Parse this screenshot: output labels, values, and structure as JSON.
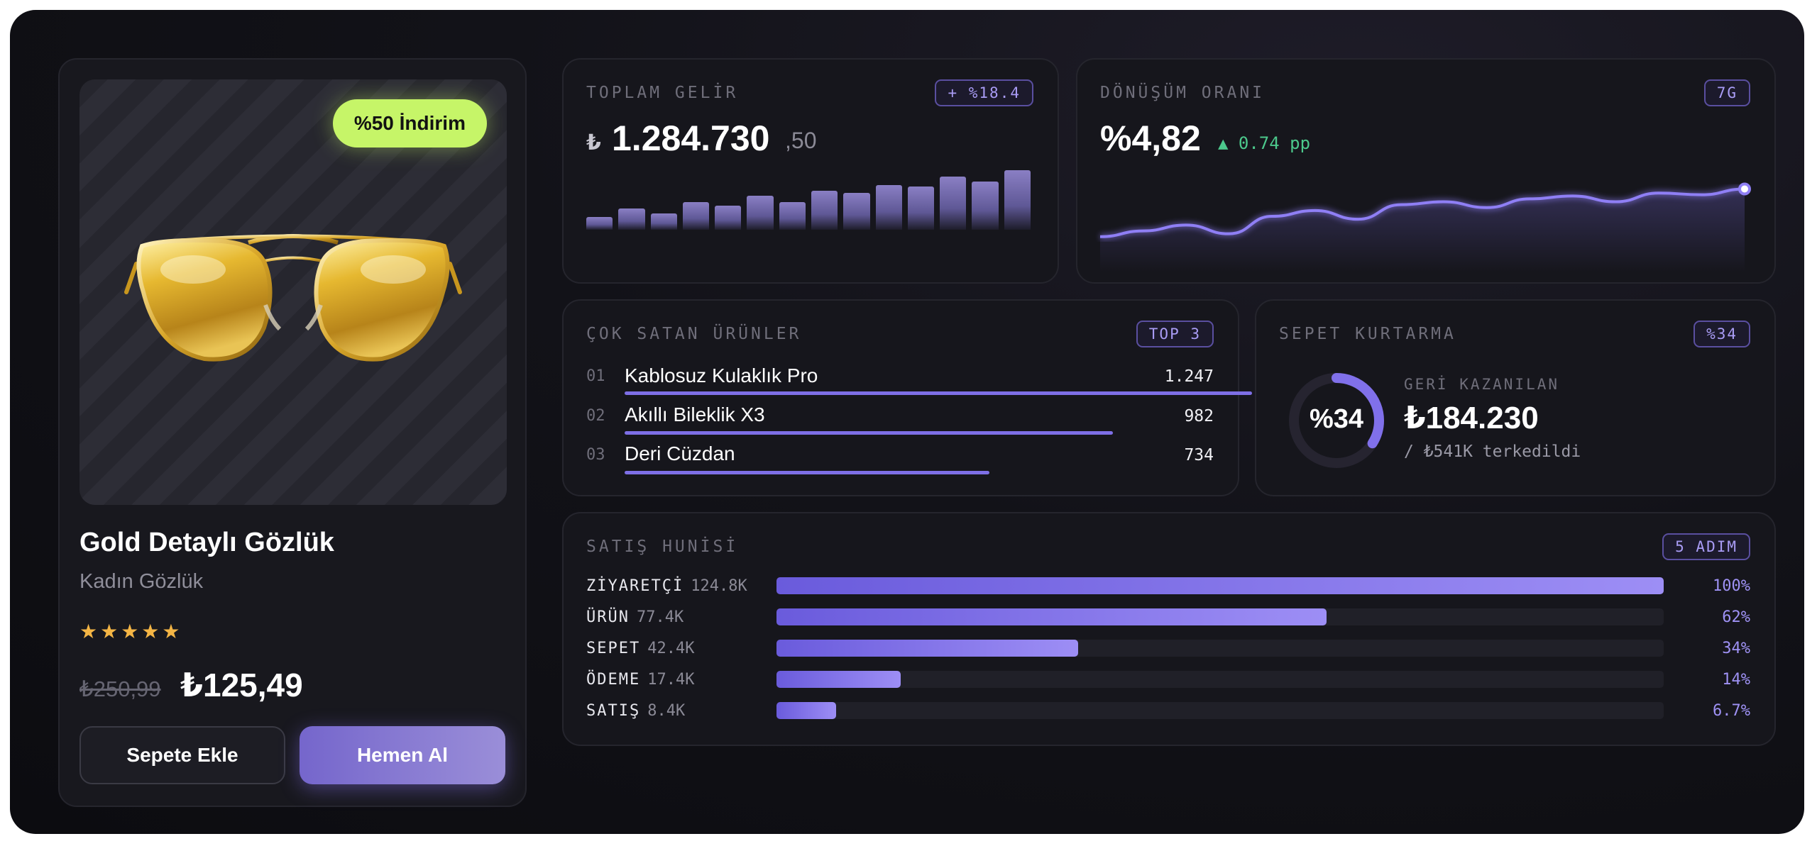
{
  "product": {
    "badge": "%50 İndirim",
    "title": "Gold Detaylı Gözlük",
    "subtitle": "Kadın Gözlük",
    "stars": "★★★★★",
    "rating": 5,
    "old_price": "₺250,99",
    "new_price": "₺125,49",
    "add_to_cart": "Sepete Ekle",
    "buy_now": "Hemen Al",
    "image_icon": "aviator-sunglasses-icon"
  },
  "revenue": {
    "kicker": "TOPLAM GELİR",
    "pill": "+ %18.4",
    "currency": "₺",
    "value": "1.284.730",
    "cents": ",50"
  },
  "conversion": {
    "kicker": "DÖNÜŞÜM ORANI",
    "pill": "7G",
    "value": "%4,82",
    "delta": "▲ 0.74 pp"
  },
  "bestsellers": {
    "kicker": "ÇOK SATAN ÜRÜNLER",
    "pill": "TOP 3",
    "items": [
      {
        "rank": "01",
        "name": "Kablosuz Kulaklık Pro",
        "count": "1.247",
        "value": 1247
      },
      {
        "rank": "02",
        "name": "Akıllı Bileklik X3",
        "count": "982",
        "value": 982
      },
      {
        "rank": "03",
        "name": "Deri Cüzdan",
        "count": "734",
        "value": 734
      }
    ]
  },
  "recovery": {
    "kicker": "SEPET KURTARMA",
    "pill": "%34",
    "donut_label": "%34",
    "donut_fraction": 0.34,
    "label": "GERİ KAZANILAN",
    "value": "₺184.230",
    "sub": "/ ₺541K terkedildi"
  },
  "funnel": {
    "kicker": "SATIŞ HUNİSİ",
    "pill": "5 ADIM",
    "steps": [
      {
        "label": "ZİYARETÇİ",
        "count": "124.8K",
        "pct": "100%",
        "fraction": 1.0
      },
      {
        "label": "ÜRÜN",
        "count": "77.4K",
        "pct": "62%",
        "fraction": 0.62
      },
      {
        "label": "SEPET",
        "count": "42.4K",
        "pct": "34%",
        "fraction": 0.34
      },
      {
        "label": "ÖDEME",
        "count": "17.4K",
        "pct": "14%",
        "fraction": 0.14
      },
      {
        "label": "SATIŞ",
        "count": "8.4K",
        "pct": "6.7%",
        "fraction": 0.067
      }
    ]
  },
  "colors": {
    "accent": "#7e6fe6",
    "badge": "#c6f568",
    "positive": "#4cc98c",
    "star": "#f4b545"
  },
  "chart_data": [
    {
      "type": "bar",
      "values": [
        10,
        17,
        13,
        22,
        19,
        27,
        22,
        31,
        29,
        35,
        34,
        42,
        38,
        47
      ]
    },
    {
      "type": "line",
      "values": [
        4.0,
        4.1,
        4.2,
        4.05,
        4.35,
        4.45,
        4.3,
        4.55,
        4.6,
        4.5,
        4.65,
        4.7,
        4.6,
        4.75,
        4.72,
        4.82
      ]
    }
  ]
}
